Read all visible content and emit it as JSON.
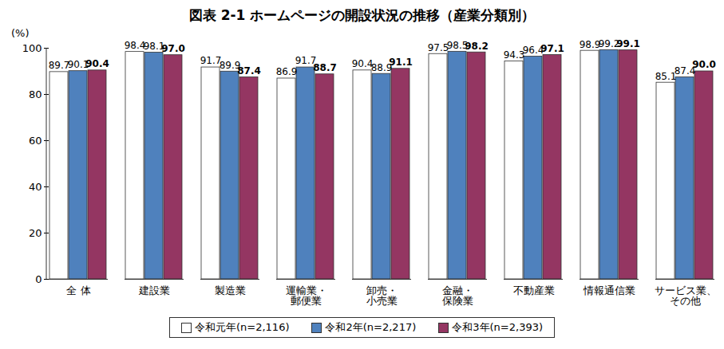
{
  "chart_data": {
    "type": "bar",
    "title": "図表 2-1 ホームページの開設状況の推移（産業分類別）",
    "y_label": "(%)",
    "categories": [
      "全 体",
      "建設業",
      "製造業",
      "運輸業・\n郵便業",
      "卸売・\n小売業",
      "金融・\n保険業",
      "不動産業",
      "情報通信業",
      "サービス業、\nその他"
    ],
    "series": [
      {
        "name": "令和元年(n=2,116)",
        "color": "#ffffff",
        "values": [
          89.7,
          98.4,
          91.7,
          86.9,
          90.4,
          97.5,
          94.3,
          98.9,
          85.1
        ],
        "value_labels": [
          "89.7",
          "98.4",
          "91.7",
          "86.9",
          "90.4",
          "97.5",
          "94.3",
          "98.9",
          "85.1"
        ]
      },
      {
        "name": "令和2年(n=2,217)",
        "color": "#4f81bd",
        "values": [
          90.1,
          98.1,
          89.9,
          91.7,
          88.9,
          98.5,
          96.4,
          99.2,
          87.4
        ],
        "value_labels": [
          "90.1",
          "98.1",
          "89.9",
          "91.7",
          "88.9",
          "98.5",
          "96.4",
          "99.2",
          "87.4"
        ]
      },
      {
        "name": "令和3年(n=2,393)",
        "color": "#943662",
        "values": [
          90.4,
          97.0,
          87.4,
          88.7,
          91.1,
          98.2,
          97.1,
          99.1,
          90.0
        ],
        "value_labels": [
          "90.4",
          "97.0",
          "87.4",
          "88.7",
          "91.1",
          "98.2",
          "97.1",
          "99.1",
          "90.0"
        ]
      }
    ],
    "ylim": [
      0,
      100
    ],
    "yticks": [
      0,
      20,
      40,
      60,
      80,
      100
    ],
    "grid": false,
    "data_labels": true,
    "legend": "bottom"
  }
}
